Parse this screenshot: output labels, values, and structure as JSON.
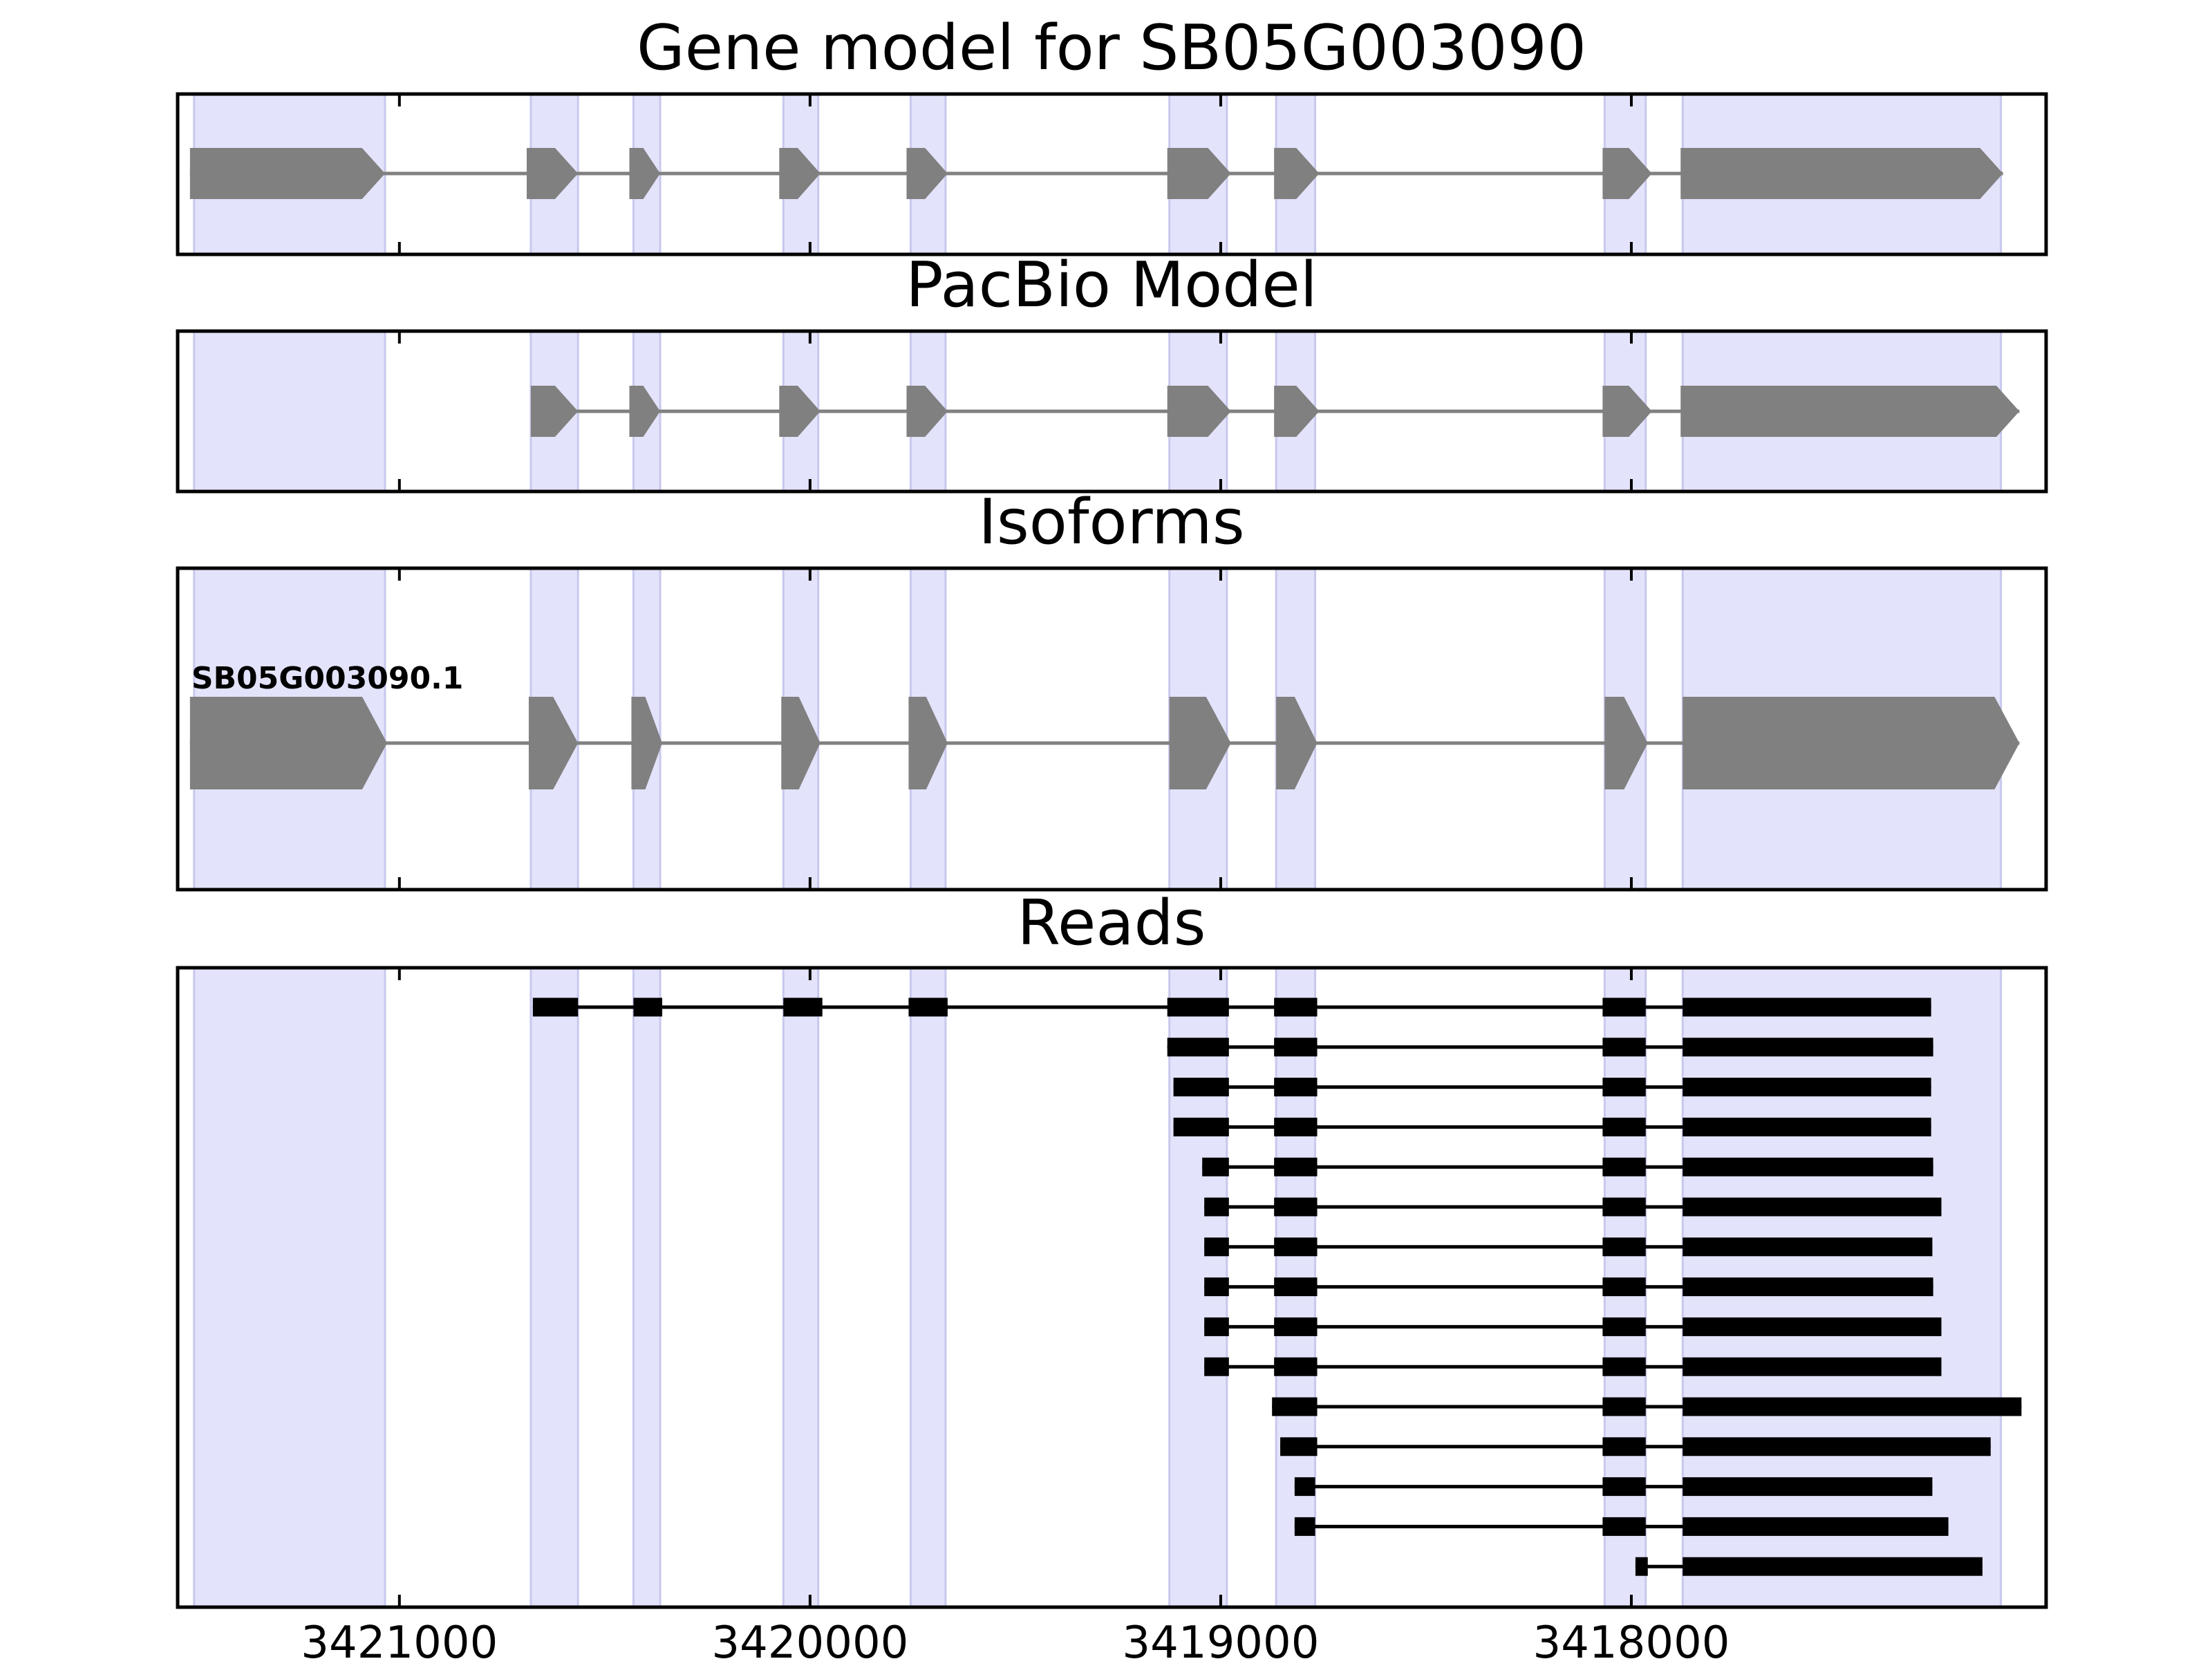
{
  "chart_data": {
    "type": "gene-model",
    "x_direction": "reversed",
    "x_ticks": [
      3421000,
      3420000,
      3419000,
      3418000
    ],
    "x_tick_labels": [
      "3421000",
      "3420000",
      "3419000",
      "3418000"
    ],
    "xlim": [
      3421540,
      3416990
    ],
    "colors": {
      "exon_band": "#e3e3fb",
      "model_exon": "#808080",
      "model_intron": "#808080",
      "read": "#000000",
      "frame": "#000000"
    },
    "exon_bands": [
      [
        3421500,
        3421035
      ],
      [
        3420680,
        3420565
      ],
      [
        3420430,
        3420365
      ],
      [
        3420065,
        3419980
      ],
      [
        3419755,
        3419670
      ],
      [
        3419125,
        3418985
      ],
      [
        3418865,
        3418770
      ],
      [
        3418065,
        3417965
      ],
      [
        3417875,
        3417100
      ]
    ],
    "panels": [
      {
        "title": "Gene model for SB05G003090",
        "models": [
          {
            "label": "",
            "exons": [
              [
                3421510,
                3421035
              ],
              [
                3420690,
                3420565
              ],
              [
                3420440,
                3420365
              ],
              [
                3420075,
                3419975
              ],
              [
                3419765,
                3419665
              ],
              [
                3419130,
                3418975
              ],
              [
                3418870,
                3418760
              ],
              [
                3418070,
                3417950
              ],
              [
                3417880,
                3417095
              ]
            ]
          }
        ]
      },
      {
        "title": "PacBio Model",
        "models": [
          {
            "label": "",
            "exons": [
              [
                3420680,
                3420565
              ],
              [
                3420440,
                3420365
              ],
              [
                3420075,
                3419975
              ],
              [
                3419765,
                3419665
              ],
              [
                3419130,
                3418975
              ],
              [
                3418870,
                3418760
              ],
              [
                3418070,
                3417950
              ],
              [
                3417880,
                3417055
              ]
            ]
          }
        ]
      },
      {
        "title": "Isoforms",
        "models": [
          {
            "label": "SB05G003090.1",
            "exons": [
              [
                3421510,
                3421030
              ],
              [
                3420685,
                3420565
              ],
              [
                3420435,
                3420360
              ],
              [
                3420070,
                3419975
              ],
              [
                3419760,
                3419665
              ],
              [
                3419125,
                3418975
              ],
              [
                3418865,
                3418765
              ],
              [
                3418065,
                3417960
              ],
              [
                3417875,
                3417055
              ]
            ]
          }
        ]
      }
    ],
    "reads_panel": {
      "title": "Reads",
      "reads": [
        [
          [
            3420675,
            3420565
          ],
          [
            3420430,
            3420360
          ],
          [
            3420065,
            3419970
          ],
          [
            3419760,
            3419665
          ],
          [
            3419130,
            3418980
          ],
          [
            3418870,
            3418765
          ],
          [
            3418070,
            3417965
          ],
          [
            3417875,
            3417270
          ]
        ],
        [
          [
            3419130,
            3418980
          ],
          [
            3418870,
            3418765
          ],
          [
            3418070,
            3417965
          ],
          [
            3417875,
            3417265
          ]
        ],
        [
          [
            3419115,
            3418980
          ],
          [
            3418870,
            3418765
          ],
          [
            3418070,
            3417965
          ],
          [
            3417875,
            3417270
          ]
        ],
        [
          [
            3419115,
            3418980
          ],
          [
            3418870,
            3418765
          ],
          [
            3418070,
            3417965
          ],
          [
            3417875,
            3417270
          ]
        ],
        [
          [
            3419045,
            3418980
          ],
          [
            3418870,
            3418765
          ],
          [
            3418070,
            3417965
          ],
          [
            3417875,
            3417265
          ]
        ],
        [
          [
            3419040,
            3418980
          ],
          [
            3418870,
            3418765
          ],
          [
            3418070,
            3417965
          ],
          [
            3417875,
            3417245
          ]
        ],
        [
          [
            3419040,
            3418980
          ],
          [
            3418870,
            3418765
          ],
          [
            3418070,
            3417965
          ],
          [
            3417875,
            3417267
          ]
        ],
        [
          [
            3419040,
            3418980
          ],
          [
            3418870,
            3418765
          ],
          [
            3418070,
            3417965
          ],
          [
            3417875,
            3417265
          ]
        ],
        [
          [
            3419040,
            3418980
          ],
          [
            3418870,
            3418765
          ],
          [
            3418070,
            3417965
          ],
          [
            3417875,
            3417245
          ]
        ],
        [
          [
            3419040,
            3418980
          ],
          [
            3418870,
            3418765
          ],
          [
            3418070,
            3417965
          ],
          [
            3417875,
            3417245
          ]
        ],
        [
          [
            3418875,
            3418765
          ],
          [
            3418070,
            3417965
          ],
          [
            3417875,
            3417050
          ]
        ],
        [
          [
            3418855,
            3418765
          ],
          [
            3418070,
            3417965
          ],
          [
            3417875,
            3417125
          ]
        ],
        [
          [
            3418820,
            3418770
          ],
          [
            3418070,
            3417965
          ],
          [
            3417875,
            3417267
          ]
        ],
        [
          [
            3418820,
            3418770
          ],
          [
            3418070,
            3417965
          ],
          [
            3417875,
            3417228
          ]
        ],
        [
          [
            3417990,
            3417960
          ],
          [
            3417875,
            3417145
          ]
        ]
      ]
    }
  }
}
